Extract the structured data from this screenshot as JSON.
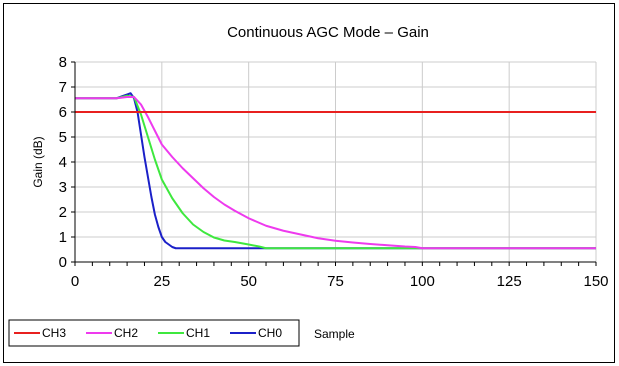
{
  "chart_data": {
    "type": "line",
    "title": "Continuous AGC Mode – Gain",
    "xlabel": "Sample",
    "ylabel": "Gain (dB)",
    "xlim": [
      0,
      150
    ],
    "ylim": [
      0,
      8
    ],
    "xticks": [
      0,
      25,
      50,
      75,
      100,
      125,
      150
    ],
    "yticks": [
      0,
      1,
      2,
      3,
      4,
      5,
      6,
      7,
      8
    ],
    "grid": true,
    "legend_position": "bottom-left",
    "series": [
      {
        "name": "CH3",
        "color": "#e8201f",
        "x": [
          0,
          150
        ],
        "y": [
          6.0,
          6.0
        ]
      },
      {
        "name": "CH2",
        "color": "#ee3aee",
        "x": [
          0,
          12,
          15,
          17,
          19,
          21,
          23,
          25,
          28,
          31,
          34,
          37,
          40,
          43,
          46,
          50,
          55,
          60,
          65,
          70,
          75,
          80,
          85,
          90,
          95,
          98,
          100,
          150
        ],
        "y": [
          6.55,
          6.55,
          6.6,
          6.6,
          6.3,
          5.8,
          5.25,
          4.7,
          4.2,
          3.75,
          3.35,
          2.95,
          2.6,
          2.3,
          2.05,
          1.75,
          1.45,
          1.25,
          1.1,
          0.95,
          0.85,
          0.78,
          0.72,
          0.67,
          0.62,
          0.6,
          0.55,
          0.55
        ]
      },
      {
        "name": "CH1",
        "color": "#3ee83e",
        "x": [
          0,
          12,
          15,
          17,
          19,
          21,
          23,
          25,
          28,
          31,
          34,
          37,
          40,
          43,
          46,
          50,
          53,
          55,
          150
        ],
        "y": [
          6.55,
          6.55,
          6.65,
          6.6,
          5.9,
          5.0,
          4.1,
          3.3,
          2.55,
          1.95,
          1.5,
          1.2,
          0.98,
          0.86,
          0.8,
          0.7,
          0.62,
          0.55,
          0.55
        ]
      },
      {
        "name": "CH0",
        "color": "#1b20c8",
        "x": [
          0,
          12,
          14,
          16,
          17,
          18,
          19,
          20,
          21,
          22,
          23,
          24,
          25,
          26,
          27,
          28,
          29,
          150
        ],
        "y": [
          6.55,
          6.55,
          6.65,
          6.75,
          6.55,
          6.0,
          5.1,
          4.2,
          3.4,
          2.6,
          1.9,
          1.4,
          1.0,
          0.8,
          0.7,
          0.6,
          0.55,
          0.55
        ]
      }
    ]
  }
}
